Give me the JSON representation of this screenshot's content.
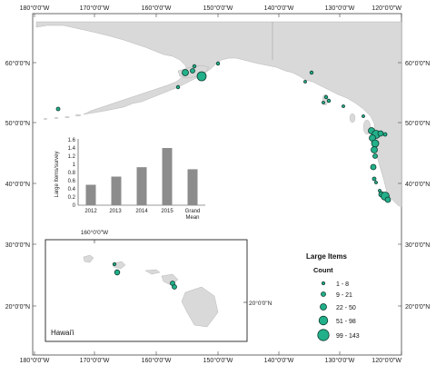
{
  "map": {
    "top_lon_ticks": [
      "180°0'0\"W",
      "170°0'0\"W",
      "160°0'0\"W",
      "150°0'0\"W",
      "140°0'0\"W",
      "130°0'0\"W",
      "120°0'0\"W"
    ],
    "bottom_lon_ticks": [
      "180°0'0\"W",
      "170°0'0\"W",
      "160°0'0\"W",
      "150°0'0\"W",
      "140°0'0\"W",
      "130°0'0\"W",
      "120°0'0\"W"
    ],
    "left_lat_ticks": [
      "60°0'0\"N",
      "50°0'0\"N",
      "40°0'0\"N",
      "30°0'0\"N",
      "20°0'0\"N"
    ],
    "right_lat_ticks": [
      "60°0'0\"N",
      "50°0'0\"N",
      "40°0'0\"N",
      "30°0'0\"N",
      "20°0'0\"N"
    ],
    "land_color": "#d9d9d9",
    "marker_color": "#22b08a"
  },
  "inset_chart": {
    "ylabel": "Large Items/survey",
    "yticks": [
      "0",
      "0.2",
      "0.4",
      "0.6",
      "0.8",
      "1",
      "1.2",
      "1.4",
      "1.6"
    ],
    "category_labels": [
      "2012",
      "2013",
      "2014",
      "2015",
      "Grand",
      "Mean"
    ]
  },
  "hawaii_inset": {
    "label": "Hawai'i",
    "lon_tick": "160°0'0\"W",
    "lat_tick": "20°0'0\"N"
  },
  "legend": {
    "title": "Large Items",
    "subtitle": "Count",
    "items": [
      {
        "label": "1 - 8"
      },
      {
        "label": "9 - 21"
      },
      {
        "label": "22 - 50"
      },
      {
        "label": "51 - 98"
      },
      {
        "label": "99 - 143"
      }
    ]
  },
  "chart_data": {
    "type": "bar",
    "categories": [
      "2012",
      "2013",
      "2014",
      "2015",
      "Grand Mean"
    ],
    "values": [
      0.5,
      0.7,
      0.93,
      1.4,
      0.88
    ],
    "title": "",
    "xlabel": "",
    "ylabel": "Large Items/survey",
    "ylim": [
      0,
      1.6
    ]
  }
}
